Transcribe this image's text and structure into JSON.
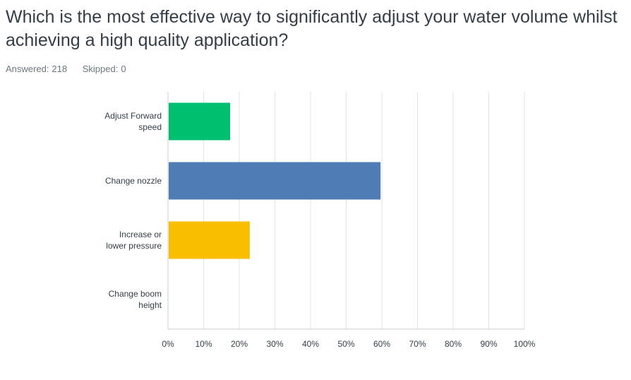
{
  "question": {
    "title": "Which is the most effective way to significantly adjust your water volume whilst achieving a high quality application?"
  },
  "stats": {
    "answered_label": "Answered:",
    "answered_value": "218",
    "skipped_label": "Skipped:",
    "skipped_value": "0"
  },
  "colors": {
    "bar_1": "#00bf6f",
    "bar_2": "#507cb6",
    "bar_3": "#f9be00",
    "bar_4": "#6bc8cd",
    "grid": "#e0e4e6",
    "axis": "#c9ced1"
  },
  "chart_data": {
    "type": "bar",
    "orientation": "horizontal",
    "categories": [
      [
        "Adjust Forward",
        "speed"
      ],
      [
        "Change nozzle"
      ],
      [
        "Increase or",
        "lower pressure"
      ],
      [
        "Change boom",
        "height"
      ]
    ],
    "values": [
      17.43,
      59.63,
      22.94,
      0
    ],
    "unit": "%",
    "xlim": [
      0,
      100
    ],
    "ticks": [
      "0%",
      "10%",
      "20%",
      "30%",
      "40%",
      "50%",
      "60%",
      "70%",
      "80%",
      "90%",
      "100%"
    ],
    "grid": true,
    "title": "",
    "xlabel": "",
    "ylabel": ""
  }
}
